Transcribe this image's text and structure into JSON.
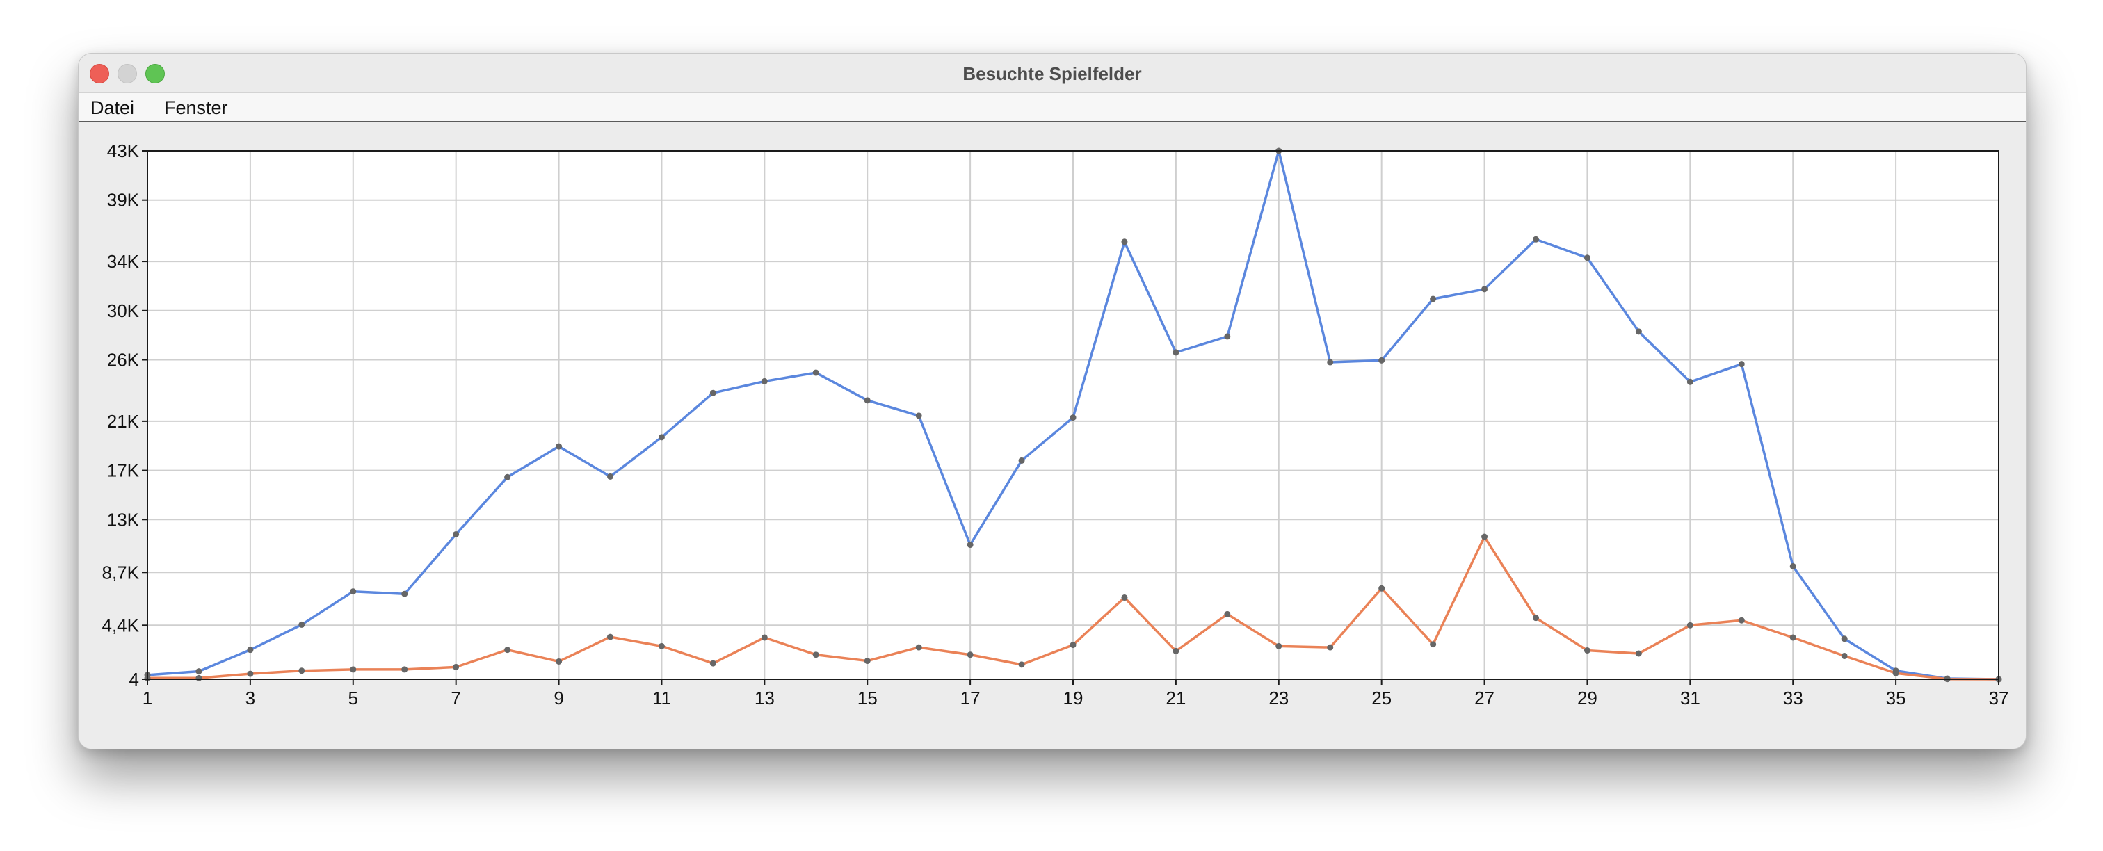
{
  "window": {
    "title": "Besuchte Spielfelder",
    "menu": [
      "Datei",
      "Fenster"
    ]
  },
  "chart_data": {
    "type": "line",
    "title": "",
    "xlabel": "",
    "ylabel": "",
    "x": [
      1,
      2,
      3,
      4,
      5,
      6,
      7,
      8,
      9,
      10,
      11,
      12,
      13,
      14,
      15,
      16,
      17,
      18,
      19,
      20,
      21,
      22,
      23,
      24,
      25,
      26,
      27,
      28,
      29,
      30,
      31,
      32,
      33,
      34,
      35,
      36,
      37
    ],
    "series": [
      {
        "color": "#5b87de",
        "values": [
          350,
          650,
          2400,
          4450,
          7150,
          6950,
          11800,
          16450,
          18950,
          16500,
          19700,
          23300,
          24250,
          24950,
          22700,
          21450,
          10950,
          17800,
          21300,
          35600,
          26600,
          27900,
          43000,
          25800,
          25950,
          30950,
          31750,
          35800,
          34300,
          28300,
          24200,
          25650,
          9200,
          3300,
          700,
          60,
          4
        ]
      },
      {
        "color": "#ea8257",
        "values": [
          100,
          100,
          450,
          700,
          800,
          800,
          1000,
          2400,
          1450,
          3450,
          2700,
          1300,
          3400,
          2000,
          1500,
          2600,
          2000,
          1200,
          2800,
          6650,
          2300,
          5300,
          2700,
          2600,
          7400,
          2850,
          11600,
          5000,
          2350,
          2100,
          4400,
          4800,
          3400,
          1900,
          500,
          20,
          4
        ]
      }
    ],
    "xlim": [
      1,
      37
    ],
    "ylim": [
      4,
      43000
    ],
    "x_ticks": [
      1,
      3,
      5,
      7,
      9,
      11,
      13,
      15,
      17,
      19,
      21,
      23,
      25,
      27,
      29,
      31,
      33,
      35,
      37
    ],
    "y_ticks": [
      {
        "value": 4,
        "label": "4"
      },
      {
        "value": 4400,
        "label": "4,4K"
      },
      {
        "value": 8700,
        "label": "8,7K"
      },
      {
        "value": 13000,
        "label": "13K"
      },
      {
        "value": 17000,
        "label": "17K"
      },
      {
        "value": 21000,
        "label": "21K"
      },
      {
        "value": 26000,
        "label": "26K"
      },
      {
        "value": 30000,
        "label": "30K"
      },
      {
        "value": 34000,
        "label": "34K"
      },
      {
        "value": 39000,
        "label": "39K"
      },
      {
        "value": 43000,
        "label": "43K"
      }
    ],
    "grid": true,
    "marker_color": "#666666"
  }
}
